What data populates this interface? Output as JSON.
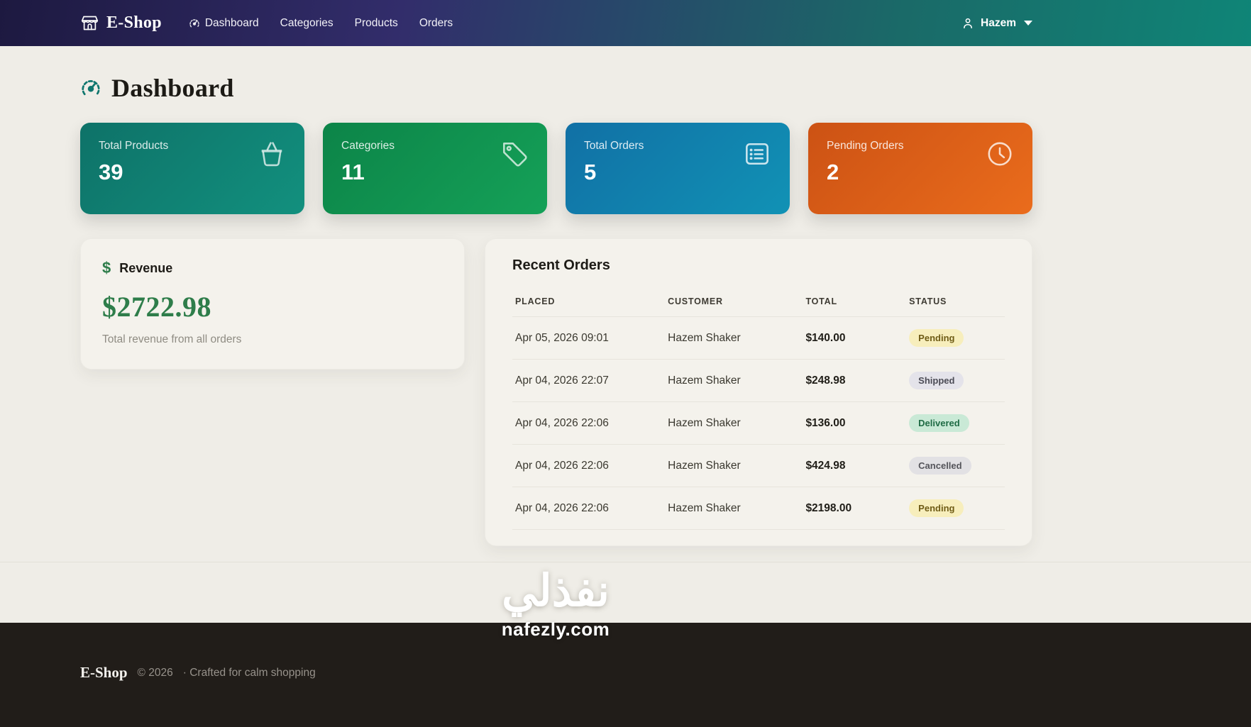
{
  "theme": {
    "navbar_gradient": [
      "#1d1940",
      "#322d6b",
      "#1a6a68",
      "#0f8577"
    ],
    "page_bg": "#efede7",
    "footer_bg": "#211d19",
    "revenue_green": "#2e7d4a",
    "title_icon_color": "#0f766e"
  },
  "navbar": {
    "brand": "E-Shop",
    "links": [
      {
        "label": "Dashboard"
      },
      {
        "label": "Categories"
      },
      {
        "label": "Products"
      },
      {
        "label": "Orders"
      }
    ],
    "user": "Hazem"
  },
  "page": {
    "title": "Dashboard"
  },
  "stats": [
    {
      "label": "Total Products",
      "value": "39",
      "icon": "basket-icon",
      "gradient": [
        "#0e7268",
        "#12907e"
      ]
    },
    {
      "label": "Categories",
      "value": "11",
      "icon": "tag-icon",
      "gradient": [
        "#0c8448",
        "#15a158"
      ]
    },
    {
      "label": "Total Orders",
      "value": "5",
      "icon": "list-icon",
      "gradient": [
        "#1170a5",
        "#1192b5"
      ]
    },
    {
      "label": "Pending Orders",
      "value": "2",
      "icon": "clock-icon",
      "gradient": [
        "#cc5214",
        "#ea6c1c"
      ]
    }
  ],
  "revenue": {
    "title": "Revenue",
    "dollar_symbol": "$",
    "amount": "$2722.98",
    "subtitle": "Total revenue from all orders"
  },
  "recent_orders": {
    "title": "Recent Orders",
    "columns": [
      "PLACED",
      "CUSTOMER",
      "TOTAL",
      "STATUS"
    ],
    "rows": [
      {
        "placed": "Apr 05, 2026 09:01",
        "customer": "Hazem Shaker",
        "total": "$140.00",
        "status": "Pending"
      },
      {
        "placed": "Apr 04, 2026 22:07",
        "customer": "Hazem Shaker",
        "total": "$248.98",
        "status": "Shipped"
      },
      {
        "placed": "Apr 04, 2026 22:06",
        "customer": "Hazem Shaker",
        "total": "$136.00",
        "status": "Delivered"
      },
      {
        "placed": "Apr 04, 2026 22:06",
        "customer": "Hazem Shaker",
        "total": "$424.98",
        "status": "Cancelled"
      },
      {
        "placed": "Apr 04, 2026 22:06",
        "customer": "Hazem Shaker",
        "total": "$2198.00",
        "status": "Pending"
      }
    ],
    "status_styles": {
      "Pending": {
        "bg": "#f7eebc",
        "fg": "#6f5c16"
      },
      "Shipped": {
        "bg": "#e4e3ea",
        "fg": "#4b4b55"
      },
      "Delivered": {
        "bg": "#c9e9d6",
        "fg": "#1f6b45"
      },
      "Cancelled": {
        "bg": "#e2e1e4",
        "fg": "#54545a"
      }
    }
  },
  "footer": {
    "brand": "E-Shop",
    "copyright": "© 2026",
    "tagline": "· Crafted for calm shopping"
  },
  "watermark": {
    "arabic": "نفذلي",
    "domain": "nafezly.com"
  }
}
